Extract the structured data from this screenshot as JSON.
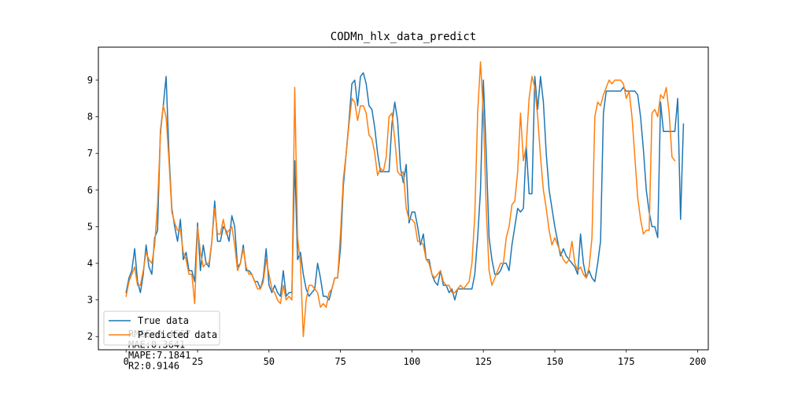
{
  "chart_data": {
    "type": "line",
    "title": "CODMn_hlx_data_predict",
    "xlabel": "",
    "ylabel": "",
    "xlim": [
      -9.7,
      203.7
    ],
    "ylim": [
      1.64,
      9.9
    ],
    "xticks": [
      0,
      25,
      50,
      75,
      100,
      125,
      150,
      175,
      200
    ],
    "yticks": [
      2,
      3,
      4,
      5,
      6,
      7,
      8,
      9
    ],
    "grid": false,
    "legend": "lower-left",
    "series": [
      {
        "name": "True data",
        "color": "#1f77b4",
        "values": [
          3.2,
          3.6,
          3.8,
          4.4,
          3.5,
          3.2,
          3.7,
          4.5,
          3.9,
          3.7,
          4.7,
          4.9,
          7.6,
          8.3,
          9.1,
          7.0,
          5.5,
          5.0,
          4.6,
          5.2,
          4.1,
          4.3,
          3.8,
          3.8,
          3.5,
          5.1,
          3.8,
          4.5,
          4.0,
          3.9,
          4.6,
          5.7,
          4.6,
          4.6,
          5.0,
          4.9,
          4.6,
          5.3,
          5.0,
          3.9,
          4.0,
          4.5,
          3.8,
          3.8,
          3.7,
          3.5,
          3.5,
          3.3,
          3.6,
          4.4,
          3.4,
          3.2,
          3.4,
          3.2,
          3.1,
          3.8,
          3.1,
          3.2,
          3.2,
          6.8,
          4.1,
          4.3,
          3.7,
          3.3,
          3.1,
          3.2,
          3.3,
          4.0,
          3.6,
          3.1,
          3.1,
          3.0,
          3.3,
          3.6,
          3.6,
          4.4,
          6.1,
          7.0,
          7.9,
          8.9,
          9.0,
          8.3,
          9.1,
          9.2,
          8.9,
          8.3,
          8.2,
          7.7,
          7.0,
          6.5,
          6.5,
          6.5,
          6.5,
          7.8,
          8.4,
          7.9,
          6.6,
          6.2,
          6.7,
          5.1,
          5.4,
          5.4,
          5.0,
          4.5,
          4.8,
          4.1,
          4.1,
          3.7,
          3.5,
          3.4,
          3.8,
          3.4,
          3.4,
          3.2,
          3.3,
          3.0,
          3.3,
          3.3,
          3.3,
          3.3,
          3.3,
          3.3,
          3.7,
          4.7,
          6.0,
          9.0,
          7.0,
          4.7,
          4.1,
          3.7,
          3.7,
          3.8,
          4.0,
          4.0,
          3.8,
          4.5,
          5.0,
          5.5,
          5.4,
          5.5,
          7.2,
          5.9,
          5.9,
          9.1,
          8.2,
          9.1,
          8.4,
          7.0,
          6.0,
          5.5,
          5.0,
          4.6,
          4.2,
          4.4,
          4.2,
          4.1,
          4.0,
          3.9,
          3.7,
          4.8,
          4.0,
          3.6,
          3.8,
          3.6,
          3.5,
          4.0,
          4.6,
          8.1,
          8.7,
          8.7,
          8.7,
          8.7,
          8.7,
          8.7,
          8.8,
          8.7,
          8.7,
          8.7,
          8.7,
          8.6,
          8.0,
          7.1,
          6.0,
          5.4,
          5.0,
          5.0,
          4.7,
          8.4,
          7.6,
          7.6,
          7.6,
          7.6,
          7.6,
          8.5,
          5.2,
          7.8
        ]
      },
      {
        "name": "Predicted data",
        "color": "#ff7f0e",
        "values": [
          3.1,
          3.5,
          3.7,
          3.9,
          3.4,
          3.4,
          3.8,
          4.3,
          4.1,
          4.0,
          4.5,
          5.6,
          7.5,
          8.3,
          8.0,
          6.8,
          5.4,
          5.1,
          4.9,
          4.9,
          4.3,
          4.1,
          3.7,
          3.7,
          2.9,
          5.0,
          4.3,
          3.9,
          4.0,
          4.0,
          4.6,
          5.5,
          4.8,
          4.8,
          5.2,
          4.8,
          4.9,
          5.0,
          4.5,
          3.8,
          4.0,
          4.4,
          3.9,
          3.7,
          3.7,
          3.5,
          3.3,
          3.3,
          3.5,
          4.1,
          3.7,
          3.3,
          3.2,
          3.0,
          2.9,
          3.4,
          3.0,
          3.1,
          3.0,
          8.8,
          4.7,
          4.0,
          2.0,
          3.0,
          3.4,
          3.4,
          3.3,
          3.2,
          2.8,
          2.9,
          2.8,
          3.2,
          3.3,
          3.6,
          3.6,
          4.8,
          6.3,
          7.0,
          7.8,
          8.5,
          8.4,
          7.9,
          8.3,
          8.3,
          8.1,
          7.5,
          7.4,
          7.0,
          6.4,
          6.6,
          6.5,
          6.9,
          8.0,
          8.1,
          7.4,
          6.5,
          6.4,
          6.5,
          5.5,
          5.2,
          5.2,
          5.1,
          4.6,
          4.6,
          4.5,
          4.1,
          4.0,
          3.7,
          3.6,
          3.7,
          3.8,
          3.5,
          3.4,
          3.4,
          3.2,
          3.2,
          3.3,
          3.4,
          3.3,
          3.4,
          3.5,
          4.0,
          5.3,
          8.1,
          9.5,
          8.1,
          5.5,
          3.8,
          3.4,
          3.6,
          3.8,
          4.0,
          4.0,
          4.7,
          5.0,
          5.6,
          5.7,
          6.5,
          8.1,
          6.8,
          7.2,
          8.5,
          9.1,
          8.8,
          8.0,
          6.9,
          6.0,
          5.5,
          4.9,
          4.5,
          4.7,
          4.5,
          4.3,
          4.1,
          4.0,
          4.1,
          4.6,
          4.0,
          3.8,
          3.9,
          3.7,
          3.6,
          3.9,
          4.7,
          8.0,
          8.4,
          8.3,
          8.6,
          8.8,
          9.0,
          8.9,
          9.0,
          9.0,
          9.0,
          8.9,
          8.5,
          8.7,
          8.0,
          6.9,
          5.8,
          5.2,
          4.8,
          4.9,
          4.9,
          8.1,
          8.2,
          8.0,
          8.6,
          8.5,
          8.8,
          8.1,
          6.9,
          6.8
        ]
      }
    ],
    "metrics": [
      "RMSE:0.4567",
      "MAE:0.3641",
      "MAPE:7.1841",
      "R2:0.9146"
    ]
  }
}
